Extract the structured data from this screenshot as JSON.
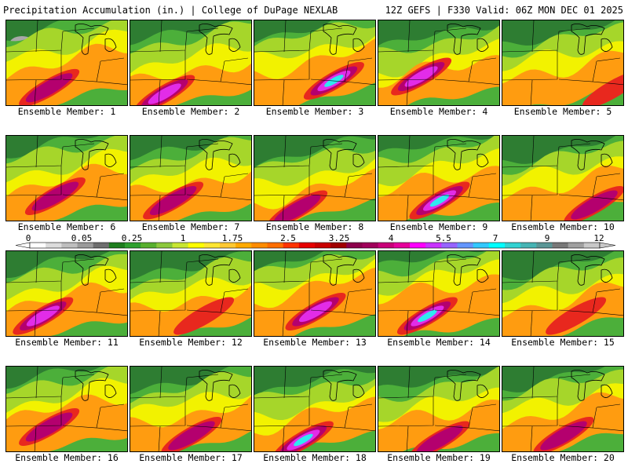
{
  "header": {
    "title": "Precipitation Accumulation (in.) | College of DuPage NEXLAB",
    "run_info": "12Z GEFS | F330 Valid: 06Z MON DEC 01 2025"
  },
  "member_label_prefix": "Ensemble Member: ",
  "members": [
    {
      "label": "Ensemble Member: 1",
      "bands": [
        0.28,
        0.45,
        0.62
      ],
      "hot": [
        0.35,
        0.78
      ],
      "maxLevel": 3
    },
    {
      "label": "Ensemble Member: 2",
      "bands": [
        0.35,
        0.58,
        0.75
      ],
      "hot": [
        0.28,
        0.85
      ],
      "maxLevel": 4
    },
    {
      "label": "Ensemble Member: 3",
      "bands": [
        0.3,
        0.48,
        0.62
      ],
      "hot": [
        0.65,
        0.7
      ],
      "maxLevel": 5
    },
    {
      "label": "Ensemble Member: 4",
      "bands": [
        0.4,
        0.6,
        0.72
      ],
      "hot": [
        0.35,
        0.65
      ],
      "maxLevel": 4
    },
    {
      "label": "Ensemble Member: 5",
      "bands": [
        0.38,
        0.55,
        0.7
      ],
      "hot": [
        0.9,
        0.8
      ],
      "maxLevel": 2
    },
    {
      "label": "Ensemble Member: 6",
      "bands": [
        0.3,
        0.5,
        0.66
      ],
      "hot": [
        0.4,
        0.7
      ],
      "maxLevel": 3
    },
    {
      "label": "Ensemble Member: 7",
      "bands": [
        0.35,
        0.55,
        0.7
      ],
      "hot": [
        0.35,
        0.75
      ],
      "maxLevel": 3
    },
    {
      "label": "Ensemble Member: 8",
      "bands": [
        0.4,
        0.6,
        0.78
      ],
      "hot": [
        0.35,
        0.85
      ],
      "maxLevel": 3
    },
    {
      "label": "Ensemble Member: 9",
      "bands": [
        0.32,
        0.52,
        0.66
      ],
      "hot": [
        0.5,
        0.75
      ],
      "maxLevel": 5
    },
    {
      "label": "Ensemble Member: 10",
      "bands": [
        0.4,
        0.55,
        0.7
      ],
      "hot": [
        0.75,
        0.8
      ],
      "maxLevel": 3
    },
    {
      "label": "Ensemble Member: 11",
      "bands": [
        0.35,
        0.52,
        0.68
      ],
      "hot": [
        0.3,
        0.75
      ],
      "maxLevel": 4
    },
    {
      "label": "Ensemble Member: 12",
      "bands": [
        0.4,
        0.58,
        0.72
      ],
      "hot": [
        0.6,
        0.75
      ],
      "maxLevel": 2
    },
    {
      "label": "Ensemble Member: 13",
      "bands": [
        0.28,
        0.45,
        0.58
      ],
      "hot": [
        0.5,
        0.7
      ],
      "maxLevel": 4
    },
    {
      "label": "Ensemble Member: 14",
      "bands": [
        0.28,
        0.45,
        0.58
      ],
      "hot": [
        0.4,
        0.75
      ],
      "maxLevel": 5
    },
    {
      "label": "Ensemble Member: 15",
      "bands": [
        0.4,
        0.58,
        0.72
      ],
      "hot": [
        0.6,
        0.75
      ],
      "maxLevel": 2
    },
    {
      "label": "Ensemble Member: 16",
      "bands": [
        0.3,
        0.48,
        0.62
      ],
      "hot": [
        0.35,
        0.7
      ],
      "maxLevel": 3
    },
    {
      "label": "Ensemble Member: 17",
      "bands": [
        0.38,
        0.55,
        0.7
      ],
      "hot": [
        0.5,
        0.8
      ],
      "maxLevel": 3
    },
    {
      "label": "Ensemble Member: 18",
      "bands": [
        0.4,
        0.6,
        0.72
      ],
      "hot": [
        0.4,
        0.85
      ],
      "maxLevel": 5
    },
    {
      "label": "Ensemble Member: 19",
      "bands": [
        0.38,
        0.58,
        0.7
      ],
      "hot": [
        0.5,
        0.85
      ],
      "maxLevel": 3
    },
    {
      "label": "Ensemble Member: 20",
      "bands": [
        0.35,
        0.52,
        0.66
      ],
      "hot": [
        0.5,
        0.8
      ],
      "maxLevel": 3
    }
  ],
  "legend": {
    "tick_labels": [
      "0",
      "0.05",
      "0.25",
      "1",
      "1.75",
      "2.5",
      "3.25",
      "4",
      "5.5",
      "7",
      "9",
      "12"
    ],
    "colors": [
      "#ffffff",
      "#dcdcdc",
      "#bebebe",
      "#9a9a9a",
      "#6e6e6e",
      "#1e7d1e",
      "#2ea02e",
      "#58b02e",
      "#8cc83c",
      "#c8e632",
      "#ffff00",
      "#ffe632",
      "#ffc832",
      "#ffaa00",
      "#ff8c00",
      "#ff6e00",
      "#ff3200",
      "#e60000",
      "#c80000",
      "#a00000",
      "#8c004b",
      "#a0005a",
      "#c80078",
      "#e6009b",
      "#ff00ff",
      "#c832ff",
      "#9664ff",
      "#6496ff",
      "#32c8ff",
      "#00ffff",
      "#32d2d2",
      "#46b4b4",
      "#5a9696",
      "#787878",
      "#a0a0a0",
      "#c8c8c8"
    ]
  },
  "palette": {
    "dark_green": "#2e7d32",
    "mid_green": "#4caf3a",
    "yellow_green": "#a6d62a",
    "yellow": "#f2f200",
    "orange": "#ff9c10",
    "red": "#e8281e",
    "magenta": "#b4006e",
    "violet": "#e22ce8",
    "cyan": "#30e8f0",
    "grey": "#a8a8a8"
  }
}
